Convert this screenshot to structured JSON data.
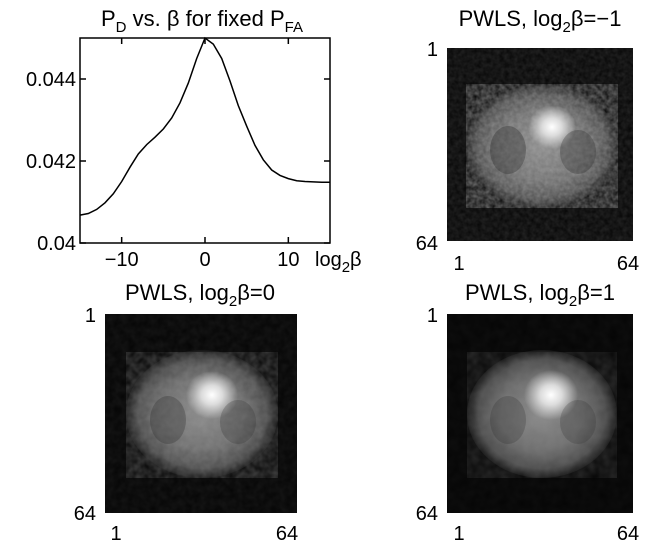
{
  "chart_data": [
    {
      "type": "line",
      "title": {
        "p": "P",
        "d": "D",
        "mid": " vs. β for fixed P",
        "fa": "FA"
      },
      "xlabel": {
        "log": "log",
        "sub": "2",
        "beta": "β"
      },
      "ylabel": "",
      "xlim": [
        -15,
        15
      ],
      "ylim": [
        0.04,
        0.045
      ],
      "xticks": [
        -10,
        0,
        10
      ],
      "xtick_labels": [
        "−10",
        "0",
        "10"
      ],
      "yticks": [
        0.04,
        0.042,
        0.044
      ],
      "ytick_labels": [
        "0.04",
        "0.042",
        "0.044"
      ],
      "grid": false,
      "series": [
        {
          "x": [
            -15,
            -14,
            -13,
            -12,
            -11,
            -10,
            -9,
            -8,
            -7,
            -6,
            -5,
            -4,
            -3,
            -2,
            -1,
            0,
            1,
            2,
            3,
            4,
            5,
            6,
            7,
            8,
            9,
            10,
            11,
            12,
            13,
            14,
            15
          ],
          "y": [
            0.04068,
            0.04072,
            0.04082,
            0.04098,
            0.0412,
            0.0415,
            0.04185,
            0.04217,
            0.0424,
            0.04258,
            0.04278,
            0.04305,
            0.04342,
            0.0439,
            0.0445,
            0.045,
            0.04485,
            0.0445,
            0.04395,
            0.04335,
            0.04285,
            0.04238,
            0.04203,
            0.04178,
            0.04165,
            0.04157,
            0.04152,
            0.0415,
            0.04149,
            0.04148,
            0.04148
          ]
        }
      ]
    },
    {
      "type": "heatmap",
      "title": {
        "pre": "PWLS, log",
        "sub": "2",
        "post": "β=−1"
      },
      "xticks": [
        "1",
        "64"
      ],
      "yticks": [
        "1",
        "64"
      ],
      "colormap": "gray"
    },
    {
      "type": "heatmap",
      "title": {
        "pre": "PWLS, log",
        "sub": "2",
        "post": "β=0"
      },
      "xticks": [
        "1",
        "64"
      ],
      "yticks": [
        "1",
        "64"
      ],
      "colormap": "gray"
    },
    {
      "type": "heatmap",
      "title": {
        "pre": "PWLS, log",
        "sub": "2",
        "post": "β=1"
      },
      "xticks": [
        "1",
        "64"
      ],
      "yticks": [
        "1",
        "64"
      ],
      "colormap": "gray"
    }
  ]
}
